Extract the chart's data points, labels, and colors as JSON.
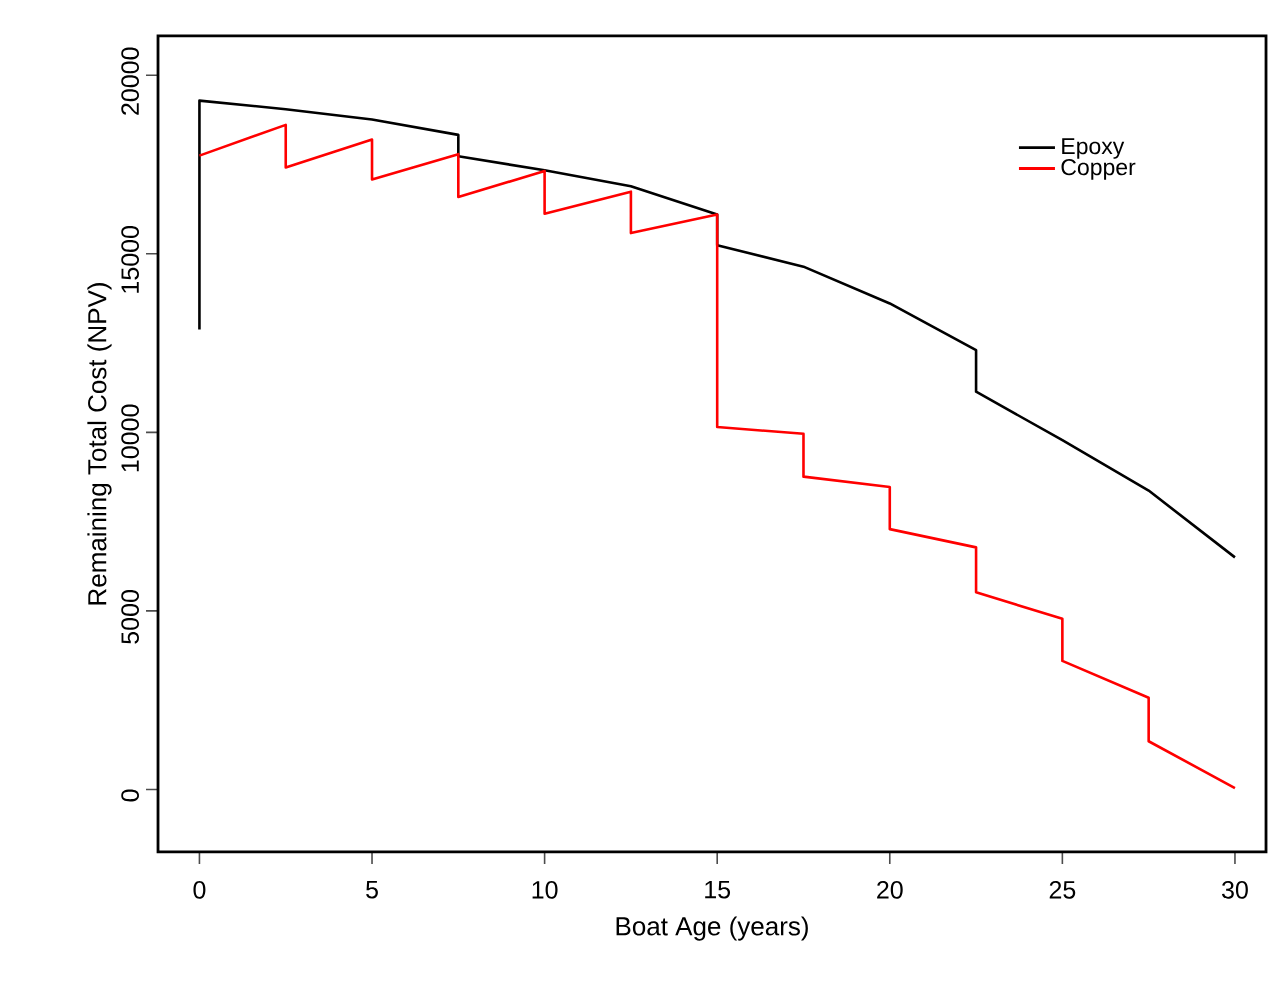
{
  "chart_data": {
    "type": "line",
    "xlabel": "Boat Age (years)",
    "ylabel": "Remaining Total Cost (NPV)",
    "xlim": [
      -1.2,
      30.9
    ],
    "ylim": [
      -1750,
      21100
    ],
    "xticks": [
      0,
      5,
      10,
      15,
      20,
      25,
      30
    ],
    "yticks": [
      0,
      5000,
      10000,
      15000,
      20000
    ],
    "legend": "top right",
    "grid": false,
    "marker": "none",
    "line_style": "solid",
    "series": [
      {
        "name": "Epoxy",
        "color": "#000000",
        "x": [
          0,
          0,
          2.5,
          5,
          7.5,
          7.5,
          10,
          12.5,
          15,
          15,
          17.5,
          20,
          22.5,
          22.5,
          25,
          27.5,
          30
        ],
        "values": [
          12880,
          19290,
          19050,
          18760,
          18330,
          17730,
          17340,
          16890,
          16100,
          15240,
          14640,
          13610,
          12300,
          11140,
          9780,
          8370,
          6500
        ]
      },
      {
        "name": "Copper",
        "color": "#ff0000",
        "x": [
          0,
          2.5,
          2.5,
          5,
          5,
          7.5,
          7.5,
          10,
          10,
          12.5,
          12.5,
          15,
          15,
          17.5,
          17.5,
          20,
          20,
          22.5,
          22.5,
          25,
          25,
          27.5,
          27.5,
          30
        ],
        "values": [
          17750,
          18610,
          17420,
          18200,
          17080,
          17790,
          16590,
          17320,
          16120,
          16740,
          15580,
          16100,
          10150,
          9960,
          8760,
          8470,
          7290,
          6780,
          5520,
          4780,
          3600,
          2570,
          1350,
          40
        ]
      }
    ]
  }
}
